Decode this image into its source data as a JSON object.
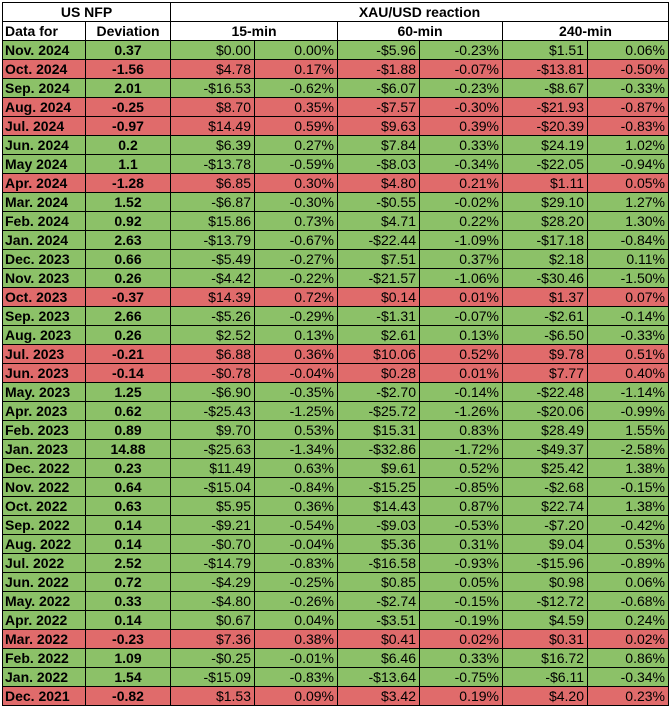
{
  "colors": {
    "positive": "#8cc168",
    "negative": "#e06b6b"
  },
  "header": {
    "group1": "US NFP",
    "group2": "XAU/USD reaction",
    "col_date": "Data for",
    "col_dev": "Deviation",
    "col_15": "15-min",
    "col_60": "60-min",
    "col_240": "240-min"
  },
  "rows": [
    {
      "date": "Nov. 2024",
      "dev": "0.37",
      "c": "g",
      "a": "$0.00",
      "ap": "0.00%",
      "b": "-$5.96",
      "bp": "-0.23%",
      "d": "$1.51",
      "dp": "0.06%"
    },
    {
      "date": "Oct. 2024",
      "dev": "-1.56",
      "c": "r",
      "a": "$4.78",
      "ap": "0.17%",
      "b": "-$1.88",
      "bp": "-0.07%",
      "d": "-$13.81",
      "dp": "-0.50%"
    },
    {
      "date": "Sep. 2024",
      "dev": "2.01",
      "c": "g",
      "a": "-$16.53",
      "ap": "-0.62%",
      "b": "-$6.07",
      "bp": "-0.23%",
      "d": "-$8.67",
      "dp": "-0.33%"
    },
    {
      "date": "Aug. 2024",
      "dev": "-0.25",
      "c": "r",
      "a": "$8.70",
      "ap": "0.35%",
      "b": "-$7.57",
      "bp": "-0.30%",
      "d": "-$21.93",
      "dp": "-0.87%"
    },
    {
      "date": "Jul. 2024",
      "dev": "-0.97",
      "c": "r",
      "a": "$14.49",
      "ap": "0.59%",
      "b": "$9.63",
      "bp": "0.39%",
      "d": "-$20.39",
      "dp": "-0.83%"
    },
    {
      "date": "Jun. 2024",
      "dev": "0.2",
      "c": "g",
      "a": "$6.39",
      "ap": "0.27%",
      "b": "$7.84",
      "bp": "0.33%",
      "d": "$24.19",
      "dp": "1.02%"
    },
    {
      "date": "May 2024",
      "dev": "1.1",
      "c": "g",
      "a": "-$13.78",
      "ap": "-0.59%",
      "b": "-$8.03",
      "bp": "-0.34%",
      "d": "-$22.05",
      "dp": "-0.94%"
    },
    {
      "date": "Apr. 2024",
      "dev": "-1.28",
      "c": "r",
      "a": "$6.85",
      "ap": "0.30%",
      "b": "$4.80",
      "bp": "0.21%",
      "d": "$1.11",
      "dp": "0.05%"
    },
    {
      "date": "Mar. 2024",
      "dev": "1.52",
      "c": "g",
      "a": "-$6.87",
      "ap": "-0.30%",
      "b": "-$0.55",
      "bp": "-0.02%",
      "d": "$29.10",
      "dp": "1.27%"
    },
    {
      "date": "Feb. 2024",
      "dev": "0.92",
      "c": "g",
      "a": "$15.86",
      "ap": "0.73%",
      "b": "$4.71",
      "bp": "0.22%",
      "d": "$28.20",
      "dp": "1.30%"
    },
    {
      "date": "Jan. 2024",
      "dev": "2.63",
      "c": "g",
      "a": "-$13.79",
      "ap": "-0.67%",
      "b": "-$22.44",
      "bp": "-1.09%",
      "d": "-$17.18",
      "dp": "-0.84%"
    },
    {
      "date": "Dec. 2023",
      "dev": "0.66",
      "c": "g",
      "a": "-$5.49",
      "ap": "-0.27%",
      "b": "$7.51",
      "bp": "0.37%",
      "d": "$2.18",
      "dp": "0.11%"
    },
    {
      "date": "Nov. 2023",
      "dev": "0.26",
      "c": "g",
      "a": "-$4.42",
      "ap": "-0.22%",
      "b": "-$21.57",
      "bp": "-1.06%",
      "d": "-$30.46",
      "dp": "-1.50%"
    },
    {
      "date": "Oct. 2023",
      "dev": "-0.37",
      "c": "r",
      "a": "$14.39",
      "ap": "0.72%",
      "b": "$0.14",
      "bp": "0.01%",
      "d": "$1.37",
      "dp": "0.07%"
    },
    {
      "date": "Sep. 2023",
      "dev": "2.66",
      "c": "g",
      "a": "-$5.26",
      "ap": "-0.29%",
      "b": "-$1.31",
      "bp": "-0.07%",
      "d": "-$2.61",
      "dp": "-0.14%"
    },
    {
      "date": "Aug. 2023",
      "dev": "0.26",
      "c": "g",
      "a": "$2.52",
      "ap": "0.13%",
      "b": "$2.61",
      "bp": "0.13%",
      "d": "-$6.50",
      "dp": "-0.33%"
    },
    {
      "date": "Jul. 2023",
      "dev": "-0.21",
      "c": "r",
      "a": "$6.88",
      "ap": "0.36%",
      "b": "$10.06",
      "bp": "0.52%",
      "d": "$9.78",
      "dp": "0.51%"
    },
    {
      "date": "Jun. 2023",
      "dev": "-0.14",
      "c": "r",
      "a": "-$0.78",
      "ap": "-0.04%",
      "b": "$0.28",
      "bp": "0.01%",
      "d": "$7.77",
      "dp": "0.40%"
    },
    {
      "date": "May. 2023",
      "dev": "1.25",
      "c": "g",
      "a": "-$6.90",
      "ap": "-0.35%",
      "b": "-$2.70",
      "bp": "-0.14%",
      "d": "-$22.48",
      "dp": "-1.14%"
    },
    {
      "date": "Apr. 2023",
      "dev": "0.62",
      "c": "g",
      "a": "-$25.43",
      "ap": "-1.25%",
      "b": "-$25.72",
      "bp": "-1.26%",
      "d": "-$20.06",
      "dp": "-0.99%"
    },
    {
      "date": "Feb. 2023",
      "dev": "0.89",
      "c": "g",
      "a": "$9.70",
      "ap": "0.53%",
      "b": "$15.31",
      "bp": "0.83%",
      "d": "$28.49",
      "dp": "1.55%"
    },
    {
      "date": "Jan. 2023",
      "dev": "14.88",
      "c": "g",
      "a": "-$25.63",
      "ap": "-1.34%",
      "b": "-$32.86",
      "bp": "-1.72%",
      "d": "-$49.37",
      "dp": "-2.58%"
    },
    {
      "date": "Dec. 2022",
      "dev": "0.23",
      "c": "g",
      "a": "$11.49",
      "ap": "0.63%",
      "b": "$9.61",
      "bp": "0.52%",
      "d": "$25.42",
      "dp": "1.38%"
    },
    {
      "date": "Nov. 2022",
      "dev": "0.64",
      "c": "g",
      "a": "-$15.04",
      "ap": "-0.84%",
      "b": "-$15.25",
      "bp": "-0.85%",
      "d": "-$2.68",
      "dp": "-0.15%"
    },
    {
      "date": "Oct. 2022",
      "dev": "0.63",
      "c": "g",
      "a": "$5.95",
      "ap": "0.36%",
      "b": "$14.43",
      "bp": "0.87%",
      "d": "$22.74",
      "dp": "1.38%"
    },
    {
      "date": "Sep. 2022",
      "dev": "0.14",
      "c": "g",
      "a": "-$9.21",
      "ap": "-0.54%",
      "b": "-$9.03",
      "bp": "-0.53%",
      "d": "-$7.20",
      "dp": "-0.42%"
    },
    {
      "date": "Aug. 2022",
      "dev": "0.14",
      "c": "g",
      "a": "-$0.70",
      "ap": "-0.04%",
      "b": "$5.36",
      "bp": "0.31%",
      "d": "$9.04",
      "dp": "0.53%"
    },
    {
      "date": "Jul. 2022",
      "dev": "2.52",
      "c": "g",
      "a": "-$14.79",
      "ap": "-0.83%",
      "b": "-$16.58",
      "bp": "-0.93%",
      "d": "-$15.96",
      "dp": "-0.89%"
    },
    {
      "date": "Jun. 2022",
      "dev": "0.72",
      "c": "g",
      "a": "-$4.29",
      "ap": "-0.25%",
      "b": "$0.85",
      "bp": "0.05%",
      "d": "$0.98",
      "dp": "0.06%"
    },
    {
      "date": "May. 2022",
      "dev": "0.33",
      "c": "g",
      "a": "-$4.80",
      "ap": "-0.26%",
      "b": "-$2.74",
      "bp": "-0.15%",
      "d": "-$12.72",
      "dp": "-0.68%"
    },
    {
      "date": "Apr. 2022",
      "dev": "0.14",
      "c": "g",
      "a": "$0.67",
      "ap": "0.04%",
      "b": "-$3.51",
      "bp": "-0.19%",
      "d": "$4.59",
      "dp": "0.24%"
    },
    {
      "date": "Mar. 2022",
      "dev": "-0.23",
      "c": "r",
      "a": "$7.36",
      "ap": "0.38%",
      "b": "$0.41",
      "bp": "0.02%",
      "d": "$0.31",
      "dp": "0.02%"
    },
    {
      "date": "Feb. 2022",
      "dev": "1.09",
      "c": "g",
      "a": "-$0.25",
      "ap": "-0.01%",
      "b": "$6.46",
      "bp": "0.33%",
      "d": "$16.72",
      "dp": "0.86%"
    },
    {
      "date": "Jan. 2022",
      "dev": "1.54",
      "c": "g",
      "a": "-$15.09",
      "ap": "-0.83%",
      "b": "-$13.64",
      "bp": "-0.75%",
      "d": "-$6.11",
      "dp": "-0.34%"
    },
    {
      "date": "Dec. 2021",
      "dev": "-0.82",
      "c": "r",
      "a": "$1.53",
      "ap": "0.09%",
      "b": "$3.42",
      "bp": "0.19%",
      "d": "$4.20",
      "dp": "0.23%"
    }
  ]
}
